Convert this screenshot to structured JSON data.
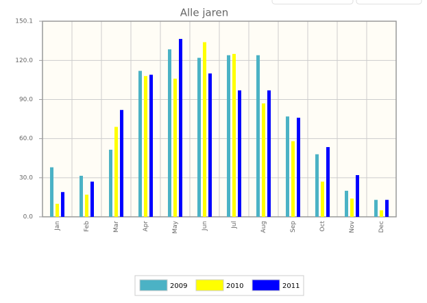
{
  "chart_data": {
    "type": "bar",
    "title": "Alle jaren",
    "categories": [
      "Jan",
      "Feb",
      "Mar",
      "Apr",
      "May",
      "Jun",
      "Jul",
      "Aug",
      "Sep",
      "Oct",
      "Nov",
      "Dec"
    ],
    "series": [
      {
        "name": "2009",
        "color": "#4bb2c5",
        "values": [
          38,
          31.5,
          51.5,
          112,
          128.5,
          122,
          124,
          124,
          77,
          48,
          20,
          13
        ]
      },
      {
        "name": "2010",
        "color": "#ffff00",
        "values": [
          10,
          17,
          69,
          108,
          106,
          134,
          125,
          87,
          58,
          27,
          14,
          5
        ]
      },
      {
        "name": "2011",
        "color": "#0000ff",
        "values": [
          19,
          27,
          82,
          109,
          136.5,
          110,
          97,
          97,
          76,
          53.5,
          32,
          13
        ]
      }
    ],
    "ylim": [
      0,
      150.1
    ],
    "yticks": [
      {
        "value": 0,
        "label": "0.0"
      },
      {
        "value": 30,
        "label": "30.0"
      },
      {
        "value": 60,
        "label": "60.0"
      },
      {
        "value": 90,
        "label": "90.0"
      },
      {
        "value": 120,
        "label": "120.0"
      },
      150.1
    ],
    "grid": true,
    "legend": "bottom"
  }
}
